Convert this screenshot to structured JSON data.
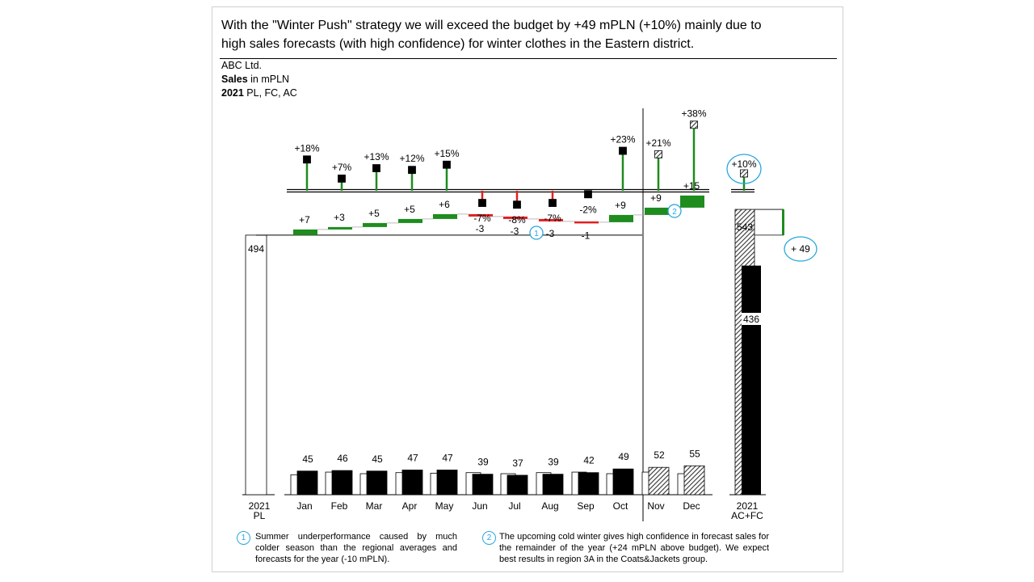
{
  "headline_line1": "With the \"Winter Push\" strategy we will exceed the budget by +49 mPLN (+10%) mainly due to",
  "headline_line2": "high sales forecasts (with high confidence) for winter clothes in the Eastern district.",
  "meta": {
    "company": "ABC Ltd.",
    "measure_bold": "Sales",
    "measure_rest": " in mPLN",
    "period_bold": "2021",
    "period_rest": " PL, FC, AC"
  },
  "colors": {
    "positive": "#1e8c1e",
    "negative": "#e02020",
    "actual": "#000000",
    "plan": "#ffffff",
    "annotation": "#2aa7dc"
  },
  "chart_data": {
    "type": "bar",
    "categories": [
      "Jan",
      "Feb",
      "Mar",
      "Apr",
      "May",
      "Jun",
      "Jul",
      "Aug",
      "Sep",
      "Oct",
      "Nov",
      "Dec"
    ],
    "scenario": [
      "AC",
      "AC",
      "AC",
      "AC",
      "AC",
      "AC",
      "AC",
      "AC",
      "AC",
      "AC",
      "FC",
      "FC"
    ],
    "series": [
      {
        "name": "AC/FC",
        "values": [
          45,
          46,
          45,
          47,
          47,
          39,
          37,
          39,
          42,
          49,
          52,
          55
        ]
      }
    ],
    "variance_abs": [
      7,
      3,
      5,
      5,
      6,
      -3,
      -3,
      -3,
      -1,
      9,
      9,
      15
    ],
    "variance_abs_labels": [
      "+7",
      "+3",
      "+5",
      "+5",
      "+6",
      "-3",
      "-3",
      "-3",
      "-1",
      "+9",
      "+9",
      "+15"
    ],
    "variance_pct": [
      18,
      7,
      13,
      12,
      15,
      -7,
      -8,
      -7,
      -2,
      23,
      21,
      38
    ],
    "variance_pct_labels": [
      "+18%",
      "+7%",
      "+13%",
      "+12%",
      "+15%",
      "-7%",
      "-8%",
      "-7%",
      "-2%",
      "+23%",
      "+21%",
      "+38%"
    ],
    "total_pct_label": "+10%",
    "total_pct": 10,
    "plan_total": 494,
    "plan_total_label": "494",
    "plan_total_category": [
      "2021",
      "PL"
    ],
    "year_total": 543,
    "year_total_label": "543",
    "actual_to_date": 436,
    "actual_to_date_label": "436",
    "total_category": [
      "2021",
      "AC+FC"
    ],
    "total_delta": 49,
    "total_delta_label": "+ 49",
    "markers": [
      {
        "label": "1",
        "category": "Jul"
      },
      {
        "label": "2",
        "category": "Nov"
      }
    ]
  },
  "notes": [
    {
      "marker": "1",
      "text": "Summer underperformance caused by much colder season than the regional averages and forecasts for the year (-10 mPLN)."
    },
    {
      "marker": "2",
      "text": "The upcoming cold winter gives high confidence in forecast sales for the remainder of the year (+24 mPLN above budget). We expect best results in region 3A in the Coats&Jackets group."
    }
  ]
}
